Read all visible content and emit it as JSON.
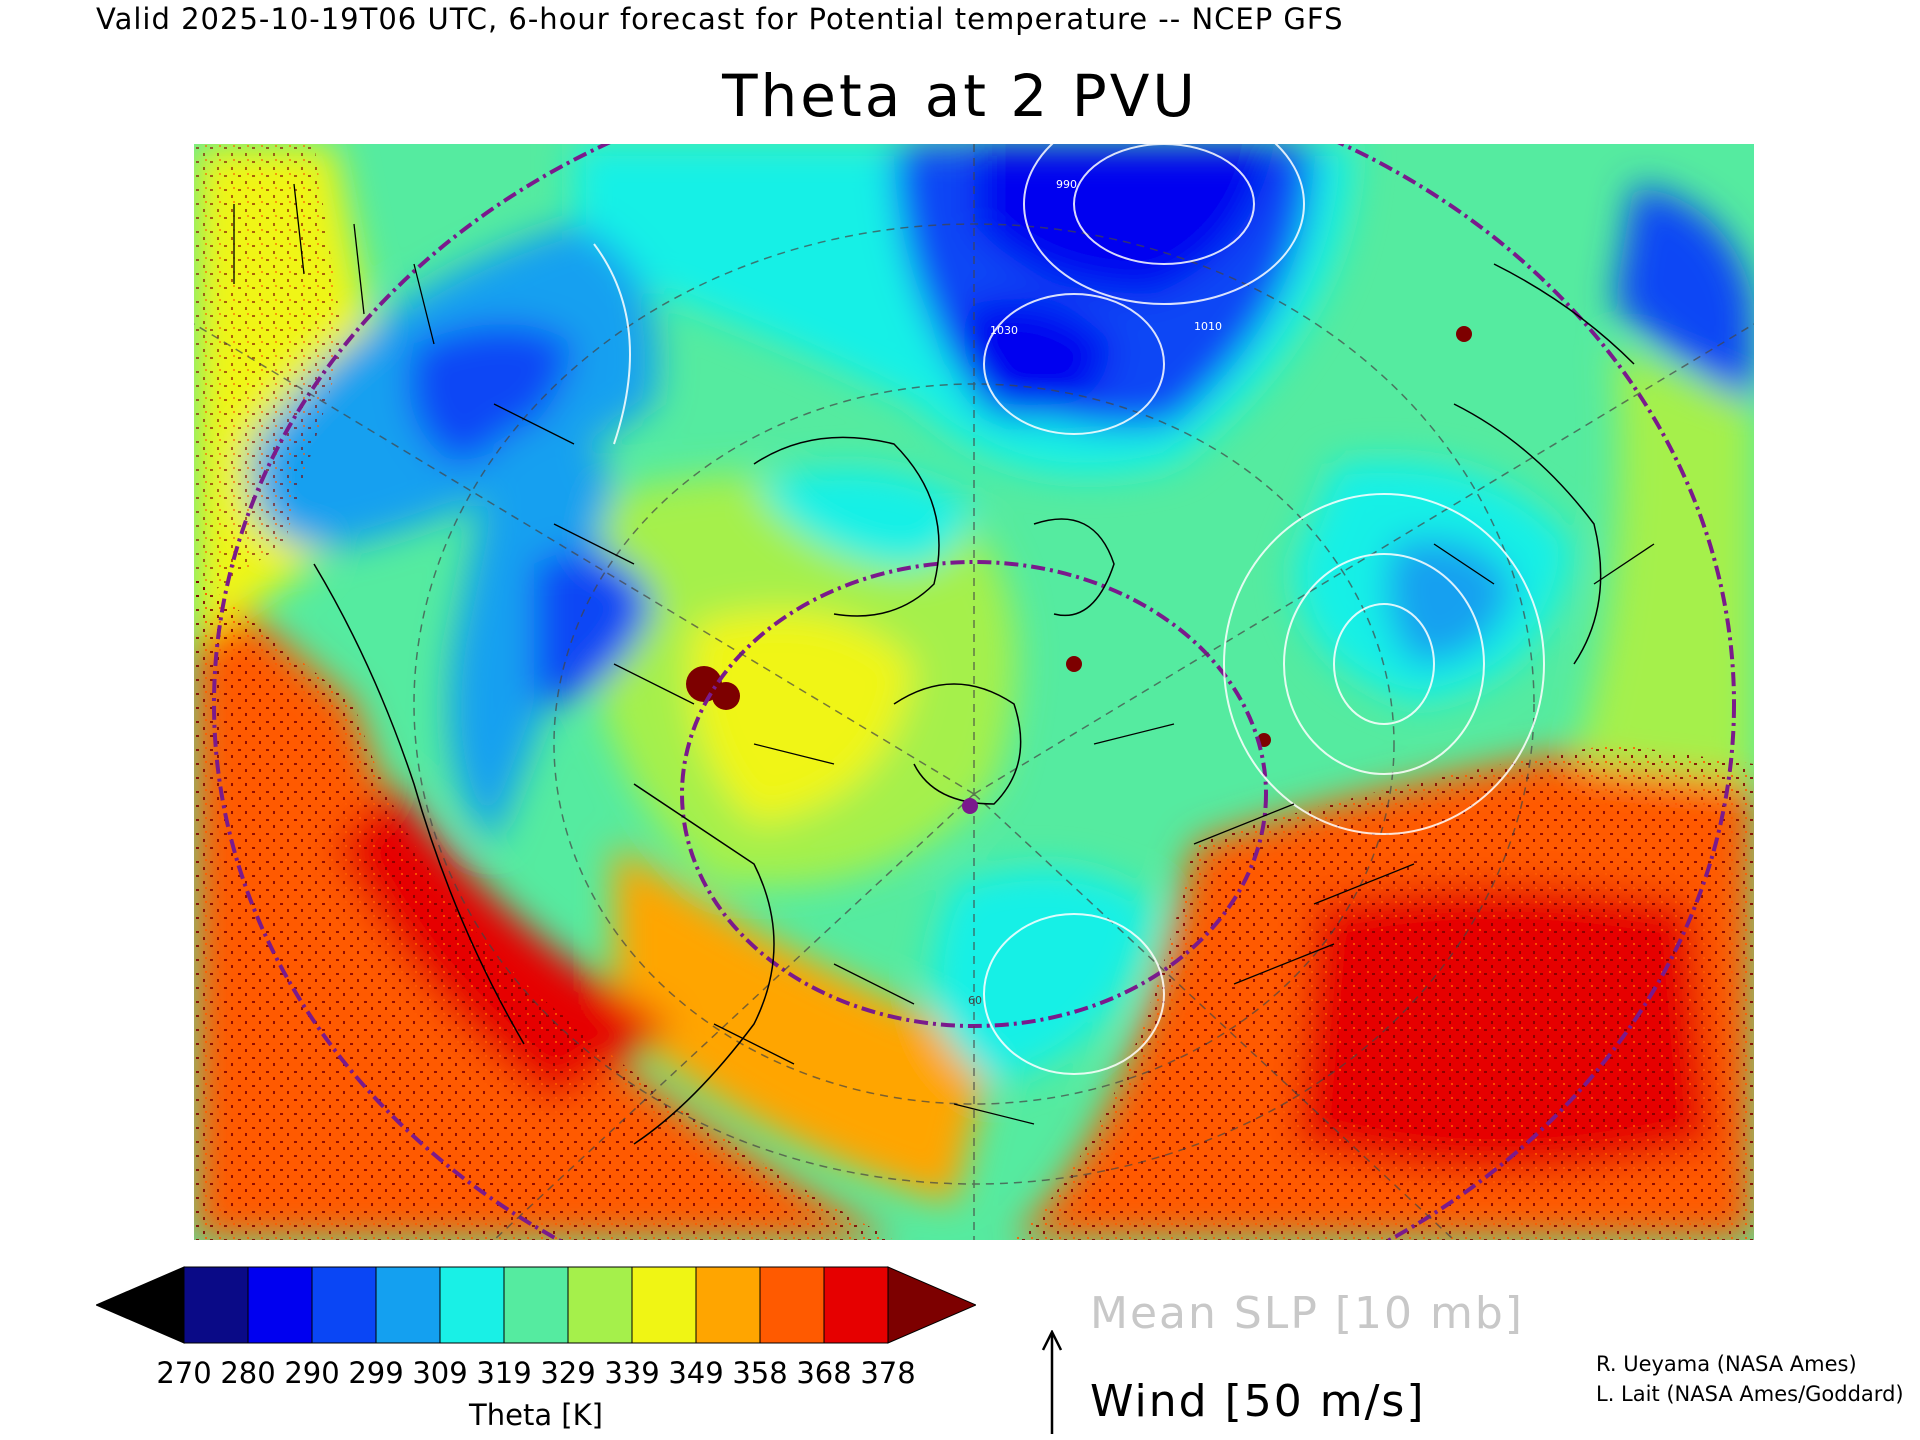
{
  "header": "Valid 2025-10-19T06 UTC, 6-hour forecast for Potential temperature -- NCEP GFS",
  "title": "Theta at 2 PVU",
  "colorbar": {
    "title": "Theta [K]",
    "labels": [
      "270",
      "280",
      "290",
      "299",
      "309",
      "319",
      "329",
      "339",
      "349",
      "358",
      "368",
      "378"
    ],
    "colors": [
      "#000000",
      "#0a0a87",
      "#0000f0",
      "#0a46f5",
      "#14a0f0",
      "#19f0e6",
      "#55eba0",
      "#a5f04b",
      "#f0f514",
      "#ffa500",
      "#ff5a00",
      "#e60000",
      "#7d0000"
    ]
  },
  "legend": {
    "slp": "Mean SLP [10 mb]",
    "wind": "Wind [50 m/s]"
  },
  "credits": [
    "R. Ueyama (NASA Ames)",
    "L. Lait (NASA Ames/Goddard)"
  ],
  "map": {
    "colors": {
      "warm_red": "#e60000",
      "dark_red": "#7d0000",
      "orange": "#ff5a00",
      "amber": "#ffa500",
      "yellow": "#f0f514",
      "lime": "#a5f04b",
      "green": "#55eba0",
      "cyan": "#19f0e6",
      "sky": "#14a0f0",
      "blue": "#0a46f5",
      "deep_blue": "#0000f0",
      "navy": "#0a0a87",
      "circle": "#7a1a8c",
      "slp_contour": "#ffffff"
    },
    "slp_labels": [
      "1010",
      "1030",
      "990",
      "60"
    ]
  }
}
